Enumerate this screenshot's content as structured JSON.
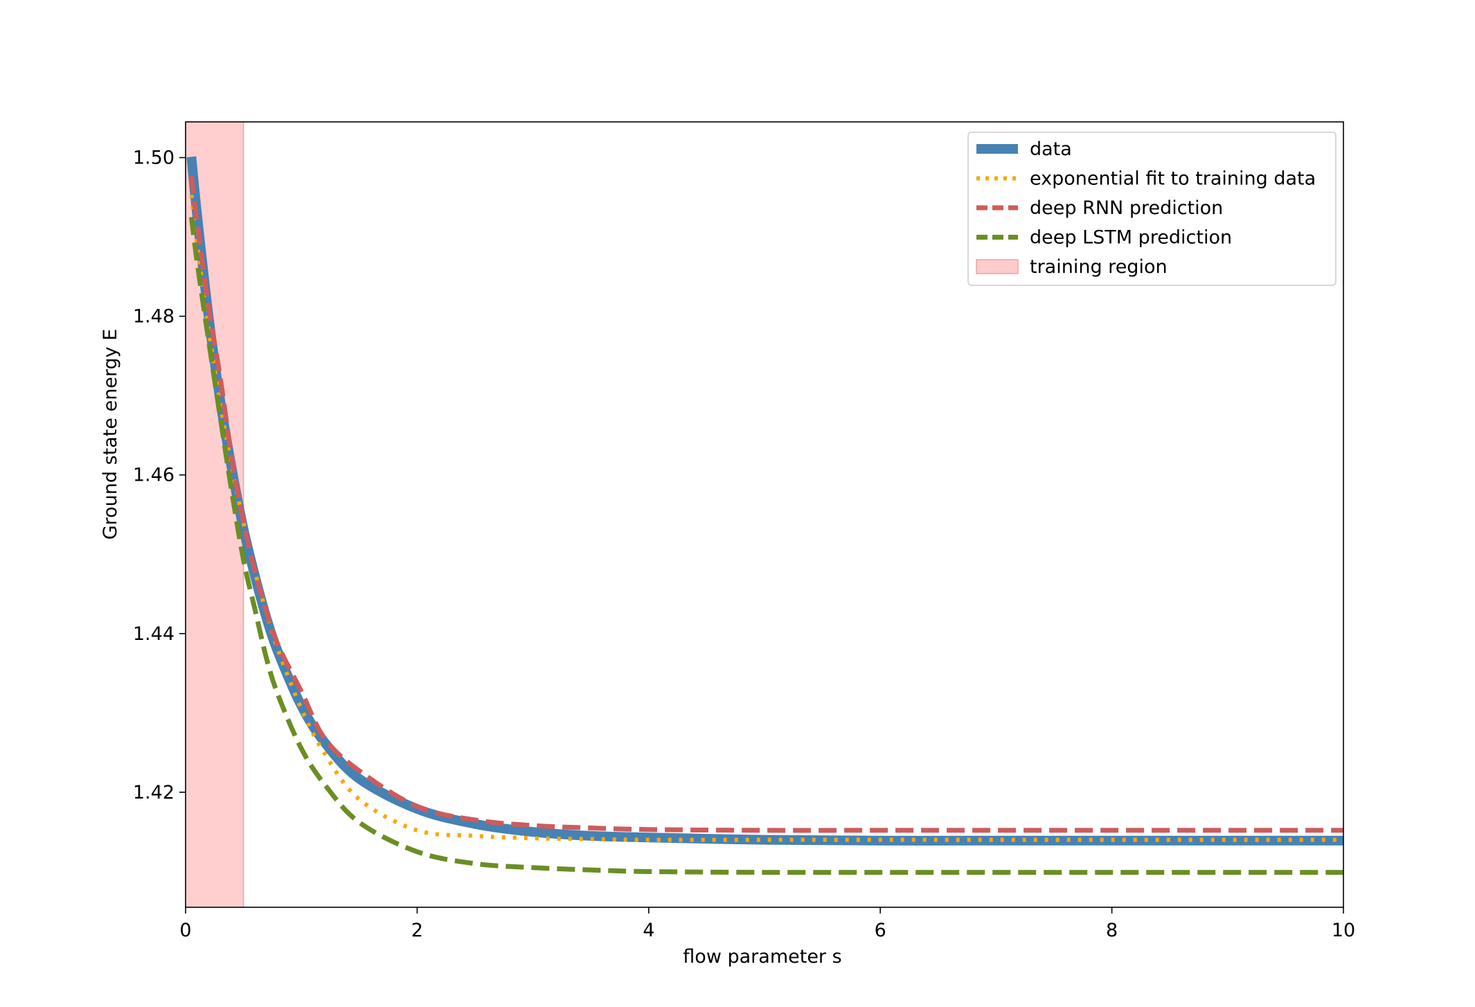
{
  "chart_data": {
    "type": "line",
    "title": "",
    "xlabel": "flow parameter s",
    "ylabel": "Ground state energy E",
    "xlim": [
      0,
      10
    ],
    "ylim": [
      1.4055,
      1.5045
    ],
    "xticks": [
      0,
      2,
      4,
      6,
      8,
      10
    ],
    "xtick_labels": [
      "0",
      "2",
      "4",
      "6",
      "8",
      "10"
    ],
    "yticks": [
      1.42,
      1.44,
      1.46,
      1.48,
      1.5
    ],
    "ytick_labels": [
      "1.42",
      "1.44",
      "1.46",
      "1.48",
      "1.50"
    ],
    "grid": false,
    "legend_position": "top-right",
    "shaded_regions": [
      {
        "name": "training region",
        "x_start": 0,
        "x_end": 0.5,
        "color": "#ffcccc"
      }
    ],
    "series": [
      {
        "name": "data",
        "style": "solid",
        "color": "#4682b4",
        "x": [
          0.05,
          0.1,
          0.2,
          0.3,
          0.4,
          0.5,
          0.6,
          0.7,
          0.8,
          1.0,
          1.2,
          1.5,
          2.0,
          2.5,
          3.0,
          3.5,
          4.0,
          5.0,
          6.0,
          7.0,
          8.0,
          9.0,
          10.0
        ],
        "y": [
          1.5001,
          1.4927,
          1.4798,
          1.4693,
          1.4607,
          1.4532,
          1.4472,
          1.4419,
          1.4376,
          1.4309,
          1.4263,
          1.4217,
          1.4179,
          1.416,
          1.415,
          1.4145,
          1.4143,
          1.414,
          1.4139,
          1.4139,
          1.4139,
          1.4139,
          1.4139
        ]
      },
      {
        "name": "exponential fit to training data",
        "style": "dotted",
        "color": "#ffa500",
        "x": [
          0.05,
          0.1,
          0.2,
          0.3,
          0.4,
          0.5,
          0.6,
          0.7,
          0.8,
          1.0,
          1.2,
          1.5,
          2.0,
          2.5,
          3.0,
          3.5,
          4.0,
          5.0,
          6.0,
          7.0,
          8.0,
          9.0,
          10.0
        ],
        "y": [
          1.4953,
          1.489,
          1.4783,
          1.469,
          1.461,
          1.454,
          1.4478,
          1.4425,
          1.4379,
          1.4305,
          1.4249,
          1.4191,
          1.4152,
          1.4145,
          1.4142,
          1.4141,
          1.414,
          1.414,
          1.414,
          1.414,
          1.414,
          1.414,
          1.414
        ]
      },
      {
        "name": "deep RNN prediction",
        "style": "dashed",
        "color": "#cd5c5c",
        "x": [
          0.05,
          0.1,
          0.2,
          0.3,
          0.4,
          0.5,
          0.6,
          0.7,
          0.8,
          1.0,
          1.2,
          1.5,
          2.0,
          2.5,
          3.0,
          3.5,
          4.0,
          5.0,
          6.0,
          7.0,
          8.0,
          9.0,
          10.0
        ],
        "y": [
          1.4977,
          1.4916,
          1.4811,
          1.4722,
          1.462,
          1.4541,
          1.4478,
          1.4427,
          1.4385,
          1.4327,
          1.4268,
          1.4227,
          1.4182,
          1.4165,
          1.4158,
          1.4155,
          1.4153,
          1.4152,
          1.4152,
          1.4152,
          1.4152,
          1.4152,
          1.4152
        ]
      },
      {
        "name": "deep LSTM prediction",
        "style": "dashed",
        "color": "#6b8e23",
        "x": [
          0.05,
          0.1,
          0.2,
          0.3,
          0.4,
          0.5,
          0.6,
          0.7,
          0.8,
          1.0,
          1.2,
          1.5,
          2.0,
          2.5,
          3.0,
          3.5,
          4.0,
          5.0,
          6.0,
          7.0,
          8.0,
          9.0,
          10.0
        ],
        "y": [
          1.4925,
          1.4868,
          1.4768,
          1.4672,
          1.4578,
          1.4493,
          1.443,
          1.4368,
          1.4322,
          1.4255,
          1.421,
          1.4162,
          1.4125,
          1.411,
          1.4105,
          1.4102,
          1.41,
          1.4099,
          1.4099,
          1.4099,
          1.4099,
          1.4099,
          1.4099
        ]
      }
    ]
  }
}
